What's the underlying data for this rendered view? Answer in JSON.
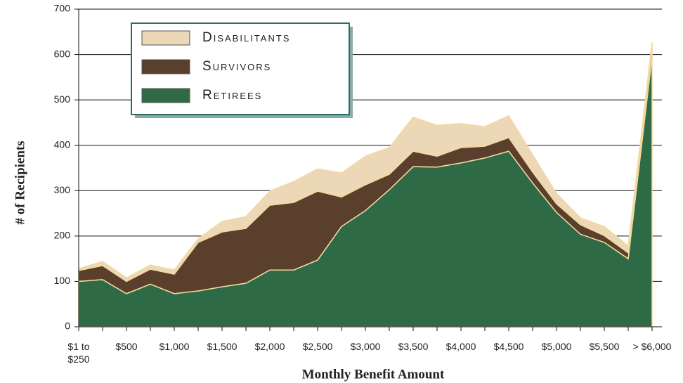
{
  "chart_data": {
    "type": "stacked_area",
    "x_label": "Monthly Benefit Amount",
    "y_label": "# of Recipients",
    "categories": [
      "$1 to $250",
      null,
      "$500",
      null,
      "$1,000",
      null,
      "$1,500",
      null,
      "$2,000",
      null,
      "$2,500",
      null,
      "$3,000",
      null,
      "$3,500",
      null,
      "$4,000",
      null,
      "$4,500",
      null,
      "$5,000",
      null,
      "$5,500",
      null,
      "> $6,000"
    ],
    "series": [
      {
        "name": "Retirees",
        "color": "#2f6a46",
        "values": [
          100,
          104,
          73,
          94,
          73,
          79,
          88,
          96,
          125,
          125,
          147,
          221,
          256,
          302,
          353,
          352,
          361,
          372,
          387,
          317,
          252,
          204,
          186,
          150,
          596
        ]
      },
      {
        "name": "Survivors",
        "color": "#5a3f2c",
        "values": [
          24,
          31,
          27,
          33,
          43,
          107,
          121,
          121,
          143,
          149,
          152,
          65,
          57,
          34,
          34,
          24,
          34,
          26,
          30,
          24,
          19,
          21,
          15,
          13,
          23
        ]
      },
      {
        "name": "Disabilitants",
        "color": "#ecd8b6",
        "values": [
          4,
          9,
          8,
          9,
          9,
          8,
          23,
          26,
          31,
          46,
          49,
          53,
          63,
          59,
          75,
          68,
          53,
          43,
          48,
          38,
          23,
          15,
          20,
          15,
          8
        ]
      }
    ],
    "ylim": [
      0,
      700
    ],
    "yticks": [
      0,
      100,
      200,
      300,
      400,
      500,
      600,
      700
    ],
    "grid": true
  }
}
